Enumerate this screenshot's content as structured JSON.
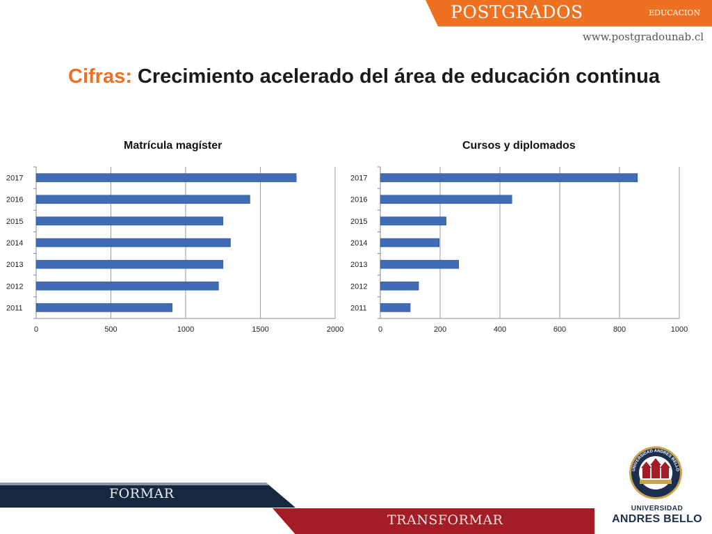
{
  "header": {
    "banner_title": "POSTGRADOS",
    "banner_sub": "EDUCACION",
    "website": "www.postgradounab.cl"
  },
  "slide": {
    "title_accent": "Cifras:",
    "title_rest": "Crecimiento acelerado del área de educación continua"
  },
  "footer": {
    "band1": "FORMAR",
    "band2": "TRANSFORMAR"
  },
  "logo": {
    "name_line1": "UNIVERSIDAD",
    "name_line2": "ANDRES BELLO",
    "seal_text": "UNIVERSIDAD ANDRES BELLO"
  },
  "colors": {
    "accent": "#ee7021",
    "bar": "#3f6cb5",
    "navy": "#15283f",
    "red": "#a31c26"
  },
  "chart_data": [
    {
      "type": "bar",
      "orientation": "horizontal",
      "title": "Matrícula magíster",
      "categories": [
        "2011",
        "2012",
        "2013",
        "2014",
        "2015",
        "2016",
        "2017"
      ],
      "values": [
        910,
        1220,
        1250,
        1300,
        1250,
        1430,
        1740
      ],
      "xlim": [
        0,
        2000
      ],
      "xticks": [
        0,
        500,
        1000,
        1500,
        2000
      ],
      "grid": true
    },
    {
      "type": "bar",
      "orientation": "horizontal",
      "title": "Cursos y diplomados",
      "categories": [
        "2011",
        "2012",
        "2013",
        "2014",
        "2015",
        "2016",
        "2017"
      ],
      "values": [
        100,
        128,
        262,
        197,
        220,
        440,
        860
      ],
      "xlim": [
        0,
        1000
      ],
      "xticks": [
        0,
        200,
        400,
        600,
        800,
        1000
      ],
      "grid": true
    }
  ]
}
